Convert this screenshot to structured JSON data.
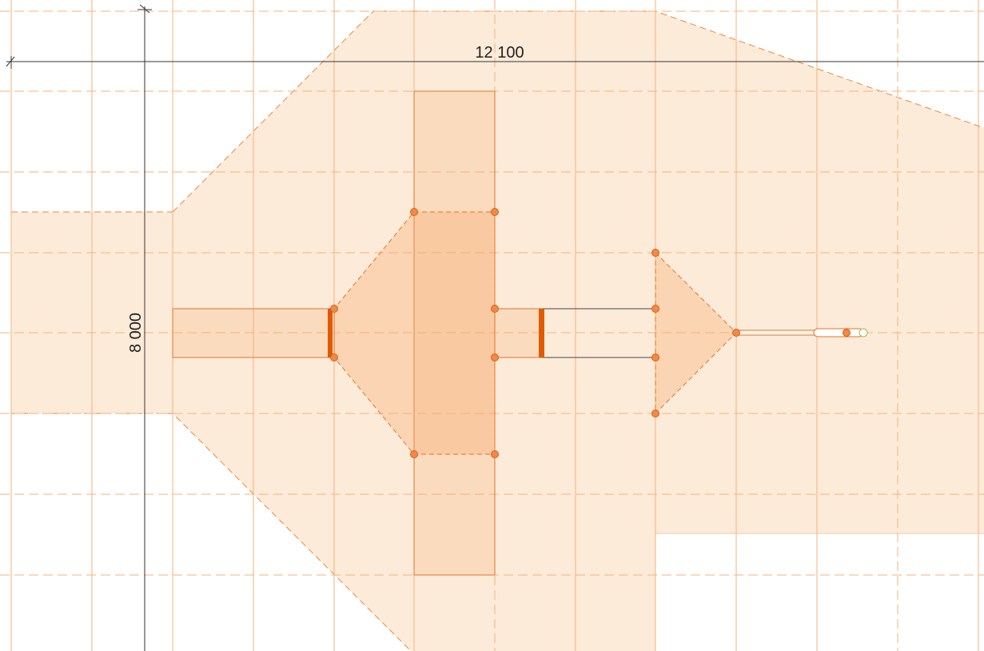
{
  "dimensions": [
    {
      "label": "12 100"
    },
    {
      "label": "8 000"
    }
  ]
}
